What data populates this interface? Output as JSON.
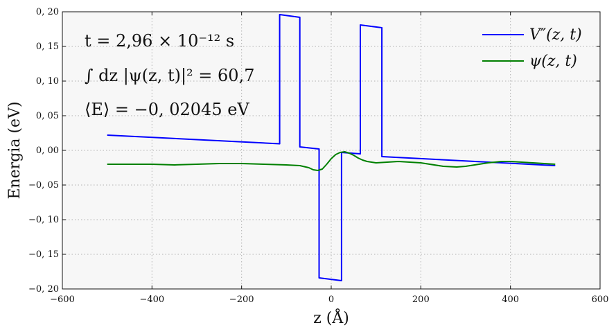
{
  "chart_data": {
    "type": "line",
    "xlabel": "z (Å)",
    "ylabel": "Energia (eV)",
    "xlim": [
      -600,
      600
    ],
    "ylim": [
      -0.2,
      0.2
    ],
    "x_ticks": [
      -600,
      -400,
      -200,
      0,
      200,
      400,
      600
    ],
    "y_ticks": [
      -0.2,
      -0.15,
      -0.1,
      -0.05,
      0.0,
      0.05,
      0.1,
      0.15,
      0.2
    ],
    "x_tick_labels": [
      "−600",
      "−400",
      "−200",
      "0",
      "200",
      "400",
      "600"
    ],
    "y_tick_labels": [
      "−0, 20",
      "−0, 15",
      "−0, 10",
      "−0, 05",
      "0, 00",
      "0, 05",
      "0, 10",
      "0, 15",
      "0, 20"
    ],
    "grid": true,
    "legend_position": "top-right",
    "annotations": [
      "t = 2,96 × 10⁻¹² s",
      "∫ dz |ψ(z, t)|² = 60,7",
      "⟨E⟩ = −0, 02045 eV"
    ],
    "series": [
      {
        "name": "V″(z, t)",
        "color": "#0000ff",
        "x": [
          -500,
          -115,
          -115,
          -70,
          -70,
          -27,
          -27,
          23,
          23,
          65,
          65,
          113,
          113,
          500
        ],
        "y": [
          0.022,
          0.0095,
          0.196,
          0.192,
          0.005,
          0.002,
          -0.184,
          -0.188,
          -0.003,
          -0.005,
          0.181,
          0.177,
          -0.009,
          -0.022
        ]
      },
      {
        "name": "ψ(z, t)",
        "color": "#008000",
        "x": [
          -500,
          -450,
          -400,
          -350,
          -300,
          -250,
          -200,
          -150,
          -100,
          -70,
          -50,
          -40,
          -30,
          -20,
          -10,
          0,
          10,
          20,
          30,
          40,
          50,
          60,
          70,
          80,
          100,
          125,
          150,
          200,
          250,
          280,
          300,
          350,
          380,
          400,
          450,
          500
        ],
        "y": [
          -0.02,
          -0.02,
          -0.02,
          -0.021,
          -0.02,
          -0.019,
          -0.019,
          -0.02,
          -0.021,
          -0.022,
          -0.025,
          -0.028,
          -0.029,
          -0.027,
          -0.02,
          -0.012,
          -0.006,
          -0.003,
          -0.002,
          -0.004,
          -0.007,
          -0.011,
          -0.014,
          -0.016,
          -0.018,
          -0.017,
          -0.016,
          -0.018,
          -0.023,
          -0.024,
          -0.023,
          -0.018,
          -0.016,
          -0.016,
          -0.018,
          -0.02
        ]
      }
    ]
  }
}
